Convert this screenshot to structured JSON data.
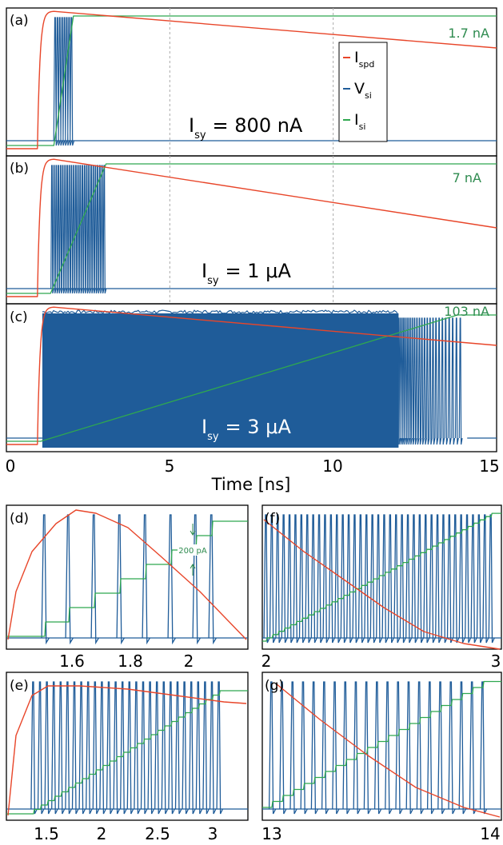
{
  "colors": {
    "spd": "#e8462a",
    "vsi": "#1f5c99",
    "isi": "#2fa84f",
    "ann": "#2e8b4f",
    "grid": "#aaaaaa"
  },
  "top": {
    "xlabel": "Time [ns]",
    "xticks": [
      "0",
      "5",
      "10",
      "15"
    ],
    "xlim": [
      0,
      15
    ],
    "gridlines_x": [
      5,
      10
    ],
    "legend": {
      "placement": "upper-center",
      "items": [
        {
          "key": "spd",
          "main": "I",
          "sub": "spd"
        },
        {
          "key": "vsi",
          "main": "V",
          "sub": "si"
        },
        {
          "key": "isi",
          "main": "I",
          "sub": "si"
        }
      ]
    }
  },
  "panels": [
    {
      "id": "a",
      "tag": "(a)",
      "isy_main": "I",
      "isy_sub": "sy",
      "isy_val": "= 800 nA",
      "isi_label": "1.7 nA"
    },
    {
      "id": "b",
      "tag": "(b)",
      "isy_main": "I",
      "isy_sub": "sy",
      "isy_val": "= 1 μA",
      "isi_label": "7 nA"
    },
    {
      "id": "c",
      "tag": "(c)",
      "isy_main": "I",
      "isy_sub": "sy",
      "isy_val": "= 3 μA",
      "isi_label": "103 nA"
    }
  ],
  "zooms": [
    {
      "id": "d",
      "tag": "(d)",
      "xticks": [
        "1.6",
        "1.8",
        "2"
      ],
      "scale_label": "200 pA"
    },
    {
      "id": "f",
      "tag": "(f)",
      "xticks": [
        "2",
        "3"
      ]
    },
    {
      "id": "e",
      "tag": "(e)",
      "xticks": [
        "1.5",
        "2",
        "2.5",
        "3"
      ]
    },
    {
      "id": "g",
      "tag": "(g)",
      "xticks": [
        "13",
        "14"
      ]
    }
  ],
  "chart_data": [
    {
      "type": "line",
      "panel": "a",
      "xlim": [
        0,
        15
      ],
      "spike_count": 8,
      "spike_window_ns": [
        1.5,
        2.0
      ],
      "series": [
        {
          "name": "I_spd",
          "shape": "rise at 1 ns, slow decay"
        },
        {
          "name": "V_si",
          "shape": "spikes"
        },
        {
          "name": "I_si",
          "final": "1.7 nA"
        }
      ]
    },
    {
      "type": "line",
      "panel": "b",
      "xlim": [
        0,
        15
      ],
      "spike_count": 25,
      "spike_window_ns": [
        1.4,
        3.0
      ],
      "series": [
        {
          "name": "I_spd"
        },
        {
          "name": "V_si"
        },
        {
          "name": "I_si",
          "final": "7 nA"
        }
      ]
    },
    {
      "type": "line",
      "panel": "c",
      "xlim": [
        0,
        15
      ],
      "spike_window_ns": [
        1.1,
        14.0
      ],
      "series": [
        {
          "name": "I_spd"
        },
        {
          "name": "V_si"
        },
        {
          "name": "I_si",
          "final": "103 nA"
        }
      ]
    },
    {
      "type": "line",
      "panel": "d",
      "xlim": [
        1.42,
        2.22
      ],
      "spike_times_ns": [
        1.5,
        1.57,
        1.65,
        1.73,
        1.81,
        1.89,
        1.97,
        2.1
      ]
    },
    {
      "type": "line",
      "panel": "f",
      "xlim": [
        2,
        3
      ],
      "spike_count": 39
    },
    {
      "type": "line",
      "panel": "e",
      "xlim": [
        1.3,
        3.4
      ],
      "spike_count": 28
    },
    {
      "type": "line",
      "panel": "g",
      "xlim": [
        13,
        14
      ],
      "spike_count": 21
    }
  ]
}
